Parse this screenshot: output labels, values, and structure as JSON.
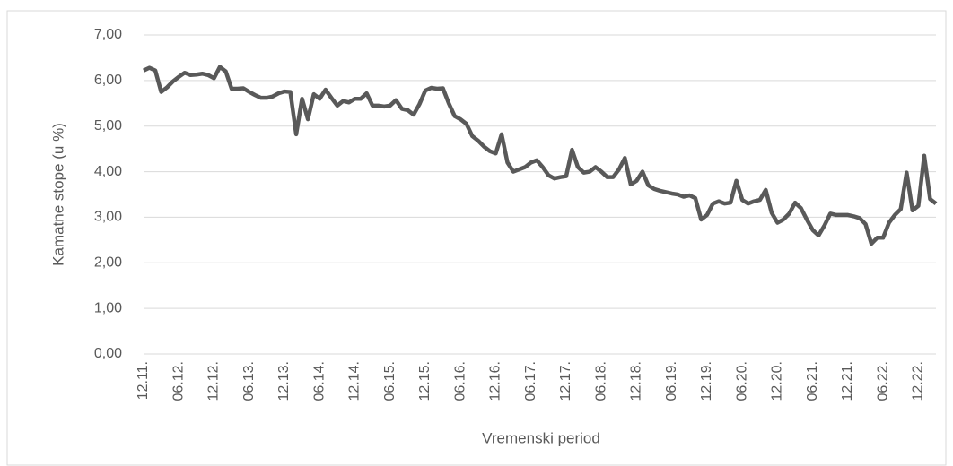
{
  "chart_data": {
    "type": "line",
    "y_label": "Kamatne stope (u %)",
    "x_label": "Vremenski period",
    "ylim": [
      0,
      7
    ],
    "yticks": [
      {
        "value": 0,
        "label": "0,00"
      },
      {
        "value": 1,
        "label": "1,00"
      },
      {
        "value": 2,
        "label": "2,00"
      },
      {
        "value": 3,
        "label": "3,00"
      },
      {
        "value": 4,
        "label": "4,00"
      },
      {
        "value": 5,
        "label": "5,00"
      },
      {
        "value": 6,
        "label": "6,00"
      },
      {
        "value": 7,
        "label": "7,00"
      }
    ],
    "grid": true,
    "categories": [
      "12.11.",
      null,
      null,
      null,
      null,
      null,
      "06.12.",
      null,
      null,
      null,
      null,
      null,
      "12.12.",
      null,
      null,
      null,
      null,
      null,
      "06.13.",
      null,
      null,
      null,
      null,
      null,
      "12.13.",
      null,
      null,
      null,
      null,
      null,
      "06.14.",
      null,
      null,
      null,
      null,
      null,
      "12.14.",
      null,
      null,
      null,
      null,
      null,
      "06.15.",
      null,
      null,
      null,
      null,
      null,
      "12.15.",
      null,
      null,
      null,
      null,
      null,
      "06.16.",
      null,
      null,
      null,
      null,
      null,
      "12.16.",
      null,
      null,
      null,
      null,
      null,
      "06.17.",
      null,
      null,
      null,
      null,
      null,
      "12.17.",
      null,
      null,
      null,
      null,
      null,
      "06.18.",
      null,
      null,
      null,
      null,
      null,
      "12.18.",
      null,
      null,
      null,
      null,
      null,
      "06.19.",
      null,
      null,
      null,
      null,
      null,
      "12.19.",
      null,
      null,
      null,
      null,
      null,
      "06.20.",
      null,
      null,
      null,
      null,
      null,
      "12.20.",
      null,
      null,
      null,
      null,
      null,
      "06.21.",
      null,
      null,
      null,
      null,
      null,
      "12.21.",
      null,
      null,
      null,
      null,
      null,
      "06.22.",
      null,
      null,
      null,
      null,
      null,
      "12.22.",
      null,
      null,
      null
    ],
    "series": [
      {
        "name": "Kamatne stope",
        "color": "#595959",
        "values": [
          6.22,
          6.28,
          6.22,
          5.75,
          5.85,
          5.98,
          6.08,
          6.17,
          6.12,
          6.13,
          6.15,
          6.12,
          6.05,
          6.3,
          6.2,
          5.82,
          5.82,
          5.83,
          5.75,
          5.68,
          5.62,
          5.62,
          5.65,
          5.72,
          5.76,
          5.75,
          4.82,
          5.6,
          5.15,
          5.7,
          5.6,
          5.8,
          5.62,
          5.45,
          5.55,
          5.52,
          5.6,
          5.6,
          5.72,
          5.45,
          5.45,
          5.43,
          5.45,
          5.57,
          5.38,
          5.35,
          5.25,
          5.48,
          5.78,
          5.84,
          5.82,
          5.83,
          5.5,
          5.22,
          5.15,
          5.05,
          4.78,
          4.68,
          4.55,
          4.45,
          4.4,
          4.82,
          4.2,
          4.0,
          4.05,
          4.1,
          4.2,
          4.25,
          4.1,
          3.92,
          3.85,
          3.88,
          3.9,
          4.48,
          4.1,
          3.98,
          4.0,
          4.1,
          4.0,
          3.88,
          3.88,
          4.05,
          4.3,
          3.72,
          3.8,
          4.0,
          3.7,
          3.62,
          3.58,
          3.55,
          3.52,
          3.5,
          3.45,
          3.48,
          3.42,
          2.95,
          3.05,
          3.3,
          3.35,
          3.3,
          3.32,
          3.8,
          3.38,
          3.3,
          3.35,
          3.38,
          3.6,
          3.1,
          2.88,
          2.95,
          3.08,
          3.32,
          3.2,
          2.95,
          2.72,
          2.6,
          2.82,
          3.08,
          3.05,
          3.05,
          3.05,
          3.02,
          2.98,
          2.85,
          2.42,
          2.55,
          2.55,
          2.88,
          3.05,
          3.18,
          3.98,
          3.15,
          3.25,
          4.35,
          3.4,
          3.3
        ]
      }
    ]
  }
}
